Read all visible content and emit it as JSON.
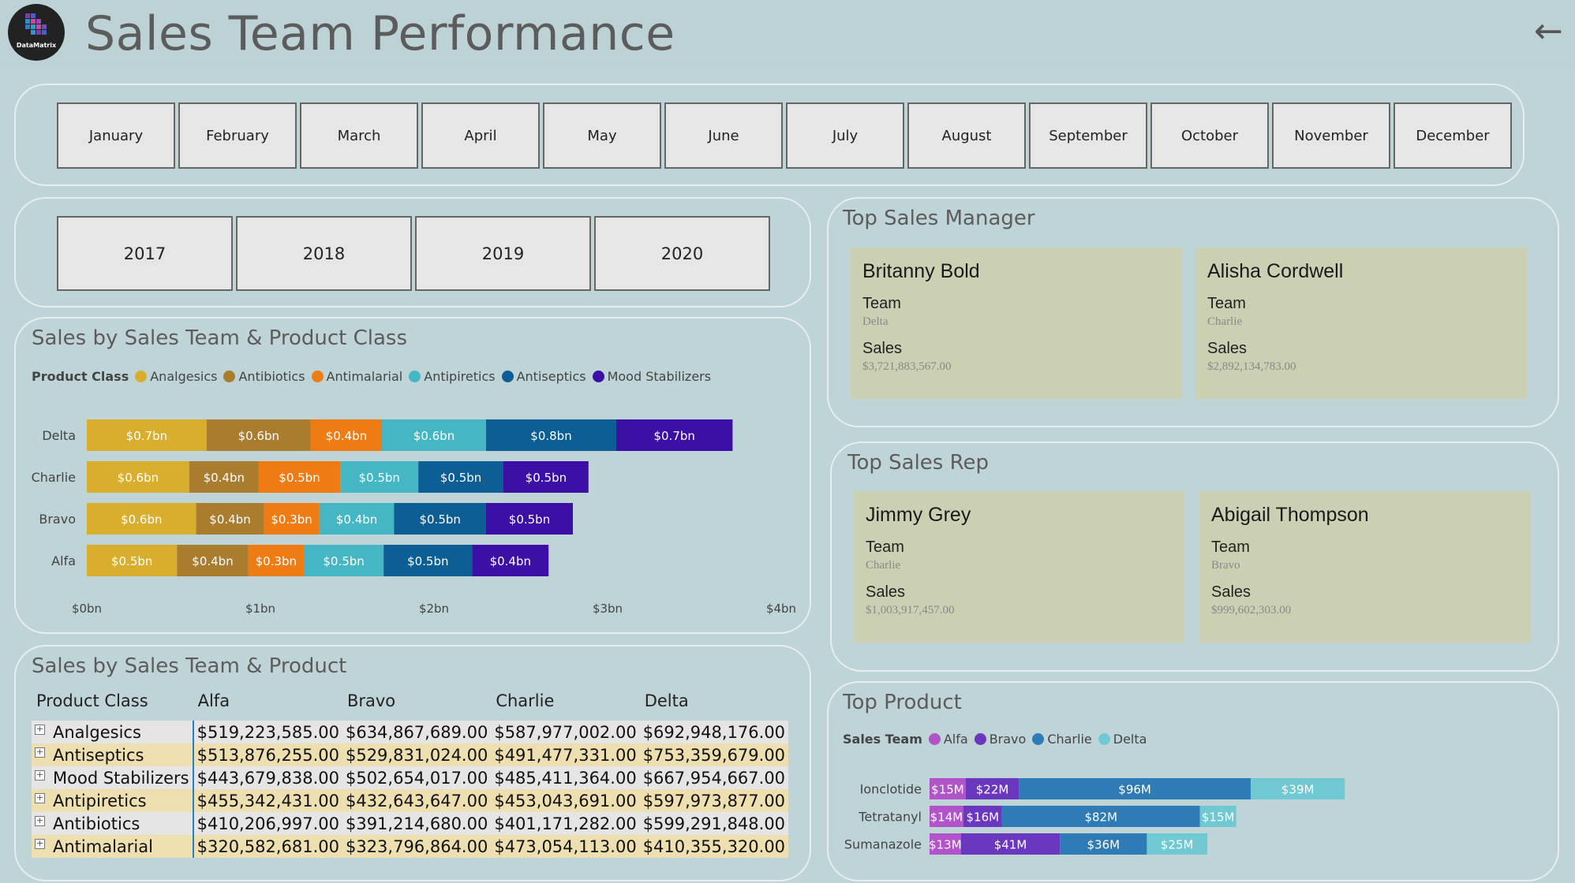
{
  "header": {
    "title": "Sales Team Performance",
    "logo_text": "DataMatrix",
    "back_icon": "arrow-left-icon"
  },
  "months": [
    "January",
    "February",
    "March",
    "April",
    "May",
    "June",
    "July",
    "August",
    "September",
    "October",
    "November",
    "December"
  ],
  "years": [
    "2017",
    "2018",
    "2019",
    "2020"
  ],
  "team_class_chart": {
    "title": "Sales by Sales Team & Product Class",
    "legend_title": "Product Class",
    "chart_data": {
      "type": "bar",
      "orientation": "horizontal-stacked",
      "categories": [
        "Delta",
        "Charlie",
        "Bravo",
        "Alfa"
      ],
      "series": [
        {
          "name": "Analgesics",
          "color": "#d9ae2c",
          "values": [
            0.69,
            0.59,
            0.63,
            0.52
          ],
          "labels": [
            "$0.7bn",
            "$0.6bn",
            "$0.6bn",
            "$0.5bn"
          ]
        },
        {
          "name": "Antibiotics",
          "color": "#a97c2e",
          "values": [
            0.6,
            0.4,
            0.39,
            0.41
          ],
          "labels": [
            "$0.6bn",
            "$0.4bn",
            "$0.4bn",
            "$0.4bn"
          ]
        },
        {
          "name": "Antimalarial",
          "color": "#ee7c13",
          "values": [
            0.41,
            0.47,
            0.32,
            0.32
          ],
          "labels": [
            "$0.4bn",
            "$0.5bn",
            "$0.3bn",
            "$0.3bn"
          ]
        },
        {
          "name": "Antipiretics",
          "color": "#45b7c4",
          "values": [
            0.6,
            0.45,
            0.43,
            0.46
          ],
          "labels": [
            "$0.6bn",
            "$0.5bn",
            "$0.4bn",
            "$0.5bn"
          ]
        },
        {
          "name": "Antiseptics",
          "color": "#0c5e94",
          "values": [
            0.75,
            0.49,
            0.53,
            0.51
          ],
          "labels": [
            "$0.8bn",
            "$0.5bn",
            "$0.5bn",
            "$0.5bn"
          ]
        },
        {
          "name": "Mood Stabilizers",
          "color": "#3c10a6",
          "values": [
            0.67,
            0.49,
            0.5,
            0.44
          ],
          "labels": [
            "$0.7bn",
            "$0.5bn",
            "$0.5bn",
            "$0.4bn"
          ]
        }
      ],
      "xlim": [
        0,
        4
      ],
      "xticks": [
        "$0bn",
        "$1bn",
        "$2bn",
        "$3bn",
        "$4bn"
      ],
      "xlabel": "",
      "ylabel": "",
      "grid": false,
      "legend_position": "top-left"
    }
  },
  "matrix": {
    "title": "Sales by Sales Team & Product",
    "headers": [
      "Product Class",
      "Alfa",
      "Bravo",
      "Charlie",
      "Delta"
    ],
    "rows": [
      {
        "name": "Analgesics",
        "values": [
          "$519,223,585.00",
          "$634,867,689.00",
          "$587,977,002.00",
          "$692,948,176.00"
        ]
      },
      {
        "name": "Antiseptics",
        "values": [
          "$513,876,255.00",
          "$529,831,024.00",
          "$491,477,331.00",
          "$753,359,679.00"
        ]
      },
      {
        "name": "Mood Stabilizers",
        "values": [
          "$443,679,838.00",
          "$502,654,017.00",
          "$485,411,364.00",
          "$667,954,667.00"
        ]
      },
      {
        "name": "Antipiretics",
        "values": [
          "$455,342,431.00",
          "$432,643,647.00",
          "$453,043,691.00",
          "$597,973,877.00"
        ]
      },
      {
        "name": "Antibiotics",
        "values": [
          "$410,206,997.00",
          "$391,214,680.00",
          "$401,171,282.00",
          "$599,291,848.00"
        ]
      },
      {
        "name": "Antimalarial",
        "values": [
          "$320,582,681.00",
          "$323,796,864.00",
          "$473,054,113.00",
          "$410,355,320.00"
        ]
      }
    ]
  },
  "top_manager": {
    "title": "Top Sales Manager",
    "cards": [
      {
        "name": "Britanny Bold",
        "team_label": "Team",
        "team": "Delta",
        "sales_label": "Sales",
        "sales": "$3,721,883,567.00"
      },
      {
        "name": "Alisha Cordwell",
        "team_label": "Team",
        "team": "Charlie",
        "sales_label": "Sales",
        "sales": "$2,892,134,783.00"
      }
    ]
  },
  "top_rep": {
    "title": "Top Sales Rep",
    "cards": [
      {
        "name": "Jimmy Grey",
        "team_label": "Team",
        "team": "Charlie",
        "sales_label": "Sales",
        "sales": "$1,003,917,457.00"
      },
      {
        "name": "Abigail Thompson",
        "team_label": "Team",
        "team": "Bravo",
        "sales_label": "Sales",
        "sales": "$999,602,303.00"
      }
    ]
  },
  "top_product": {
    "title": "Top Product",
    "legend_title": "Sales Team",
    "chart_data": {
      "type": "bar",
      "orientation": "horizontal-stacked",
      "categories": [
        "Ionclotide",
        "Tetratanyl",
        "Sumanazole"
      ],
      "series": [
        {
          "name": "Alfa",
          "color": "#b153c9",
          "values": [
            15,
            14,
            13
          ],
          "labels": [
            "$15M",
            "$14M",
            "$13M"
          ]
        },
        {
          "name": "Bravo",
          "color": "#6a38bf",
          "values": [
            22,
            16,
            41
          ],
          "labels": [
            "$22M",
            "$16M",
            "$41M"
          ]
        },
        {
          "name": "Charlie",
          "color": "#2f7bb5",
          "values": [
            96,
            82,
            36
          ],
          "labels": [
            "$96M",
            "$82M",
            "$36M"
          ]
        },
        {
          "name": "Delta",
          "color": "#6fc8d2",
          "values": [
            39,
            15,
            25
          ],
          "labels": [
            "$39M",
            "$15M",
            "$25M"
          ]
        }
      ],
      "legend_position": "top-left"
    }
  }
}
